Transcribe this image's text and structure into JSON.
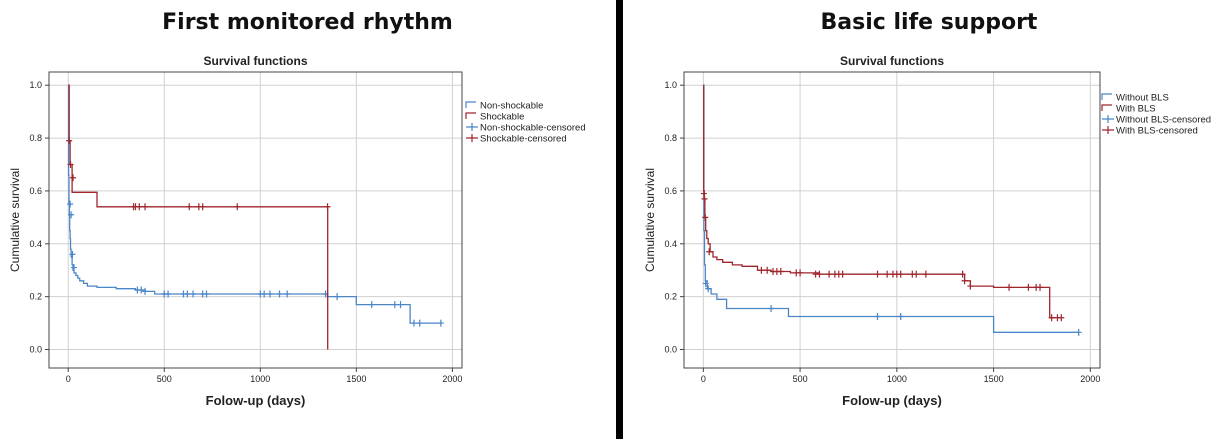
{
  "colors": {
    "series_a": "#4a86c8",
    "series_b": "#a0262d",
    "frame": "#000000",
    "grid": "#d0d0d0"
  },
  "chart_data": [
    {
      "panel_title": "First monitored rhythm",
      "type": "line",
      "step": true,
      "title": "Survival functions",
      "xlabel": "Folow-up (days)",
      "ylabel": "Cumulative survival",
      "xlim": [
        -100,
        2050
      ],
      "ylim": [
        -0.07,
        1.05
      ],
      "x_ticks": [
        0,
        500,
        1000,
        1500,
        2000
      ],
      "y_ticks": [
        "0.0",
        "0.2",
        "0.4",
        "0.6",
        "0.8",
        "1.0"
      ],
      "grid": true,
      "legend_position": "right",
      "legend": [
        "Non-shockable",
        "Shockable",
        "Non-shockable-censored",
        "Shockable-censored"
      ],
      "series": [
        {
          "name": "Non-shockable",
          "color": "#4a86c8",
          "x": [
            0,
            2,
            4,
            6,
            8,
            10,
            12,
            15,
            20,
            25,
            30,
            40,
            50,
            60,
            80,
            100,
            150,
            250,
            350,
            400,
            450,
            1000,
            1350,
            1500,
            1650,
            1780,
            1940
          ],
          "y": [
            1.0,
            0.66,
            0.55,
            0.51,
            0.45,
            0.42,
            0.38,
            0.35,
            0.32,
            0.3,
            0.29,
            0.28,
            0.27,
            0.26,
            0.25,
            0.24,
            0.235,
            0.23,
            0.225,
            0.22,
            0.21,
            0.21,
            0.2,
            0.17,
            0.17,
            0.1,
            0.1
          ],
          "censored_x": [
            10,
            15,
            22,
            30,
            360,
            380,
            400,
            500,
            520,
            600,
            620,
            650,
            700,
            720,
            1000,
            1020,
            1050,
            1100,
            1140,
            1340,
            1400,
            1580,
            1700,
            1730,
            1800,
            1830,
            1940
          ],
          "censored_y": [
            0.55,
            0.51,
            0.36,
            0.31,
            0.225,
            0.225,
            0.22,
            0.21,
            0.21,
            0.21,
            0.21,
            0.21,
            0.21,
            0.21,
            0.21,
            0.21,
            0.21,
            0.21,
            0.21,
            0.21,
            0.2,
            0.17,
            0.17,
            0.17,
            0.1,
            0.1,
            0.1
          ]
        },
        {
          "name": "Shockable",
          "color": "#a0262d",
          "x": [
            0,
            5,
            10,
            20,
            150,
            1350,
            1351
          ],
          "y": [
            1.0,
            0.79,
            0.7,
            0.595,
            0.54,
            0.54,
            0.0
          ],
          "censored_x": [
            5,
            12,
            25,
            340,
            350,
            370,
            400,
            630,
            680,
            700,
            880,
            1350
          ],
          "censored_y": [
            0.79,
            0.7,
            0.65,
            0.54,
            0.54,
            0.54,
            0.54,
            0.54,
            0.54,
            0.54,
            0.54,
            0.54
          ]
        }
      ]
    },
    {
      "panel_title": "Basic life support",
      "type": "line",
      "step": true,
      "title": "Survival functions",
      "xlabel": "Folow-up (days)",
      "ylabel": "Cumulative survival",
      "xlim": [
        -100,
        2050
      ],
      "ylim": [
        -0.07,
        1.05
      ],
      "x_ticks": [
        0,
        500,
        1000,
        1500,
        2000
      ],
      "y_ticks": [
        "0.0",
        "0.2",
        "0.4",
        "0.6",
        "0.8",
        "1.0"
      ],
      "grid": true,
      "legend_position": "right",
      "legend": [
        "Without BLS",
        "With BLS",
        "Without BLS-censored",
        "With BLS-censored"
      ],
      "series": [
        {
          "name": "Without BLS",
          "color": "#4a86c8",
          "x": [
            0,
            3,
            6,
            10,
            20,
            40,
            70,
            120,
            440,
            1500,
            1940
          ],
          "y": [
            1.0,
            0.45,
            0.32,
            0.26,
            0.23,
            0.21,
            0.19,
            0.155,
            0.125,
            0.065,
            0.065
          ],
          "censored_x": [
            12,
            25,
            350,
            900,
            1020,
            1940
          ],
          "censored_y": [
            0.25,
            0.23,
            0.155,
            0.125,
            0.125,
            0.065
          ]
        },
        {
          "name": "With BLS",
          "color": "#a0262d",
          "x": [
            0,
            2,
            5,
            8,
            12,
            18,
            25,
            35,
            50,
            70,
            100,
            150,
            200,
            280,
            350,
            450,
            600,
            1340,
            1350,
            1380,
            1500,
            1790,
            1820
          ],
          "y": [
            1.0,
            0.6,
            0.57,
            0.5,
            0.45,
            0.42,
            0.4,
            0.37,
            0.35,
            0.34,
            0.33,
            0.32,
            0.315,
            0.3,
            0.295,
            0.29,
            0.285,
            0.285,
            0.26,
            0.24,
            0.235,
            0.12,
            0.12
          ],
          "censored_x": [
            3,
            6,
            10,
            30,
            300,
            330,
            360,
            380,
            400,
            480,
            500,
            580,
            600,
            650,
            680,
            700,
            720,
            900,
            950,
            980,
            1000,
            1020,
            1080,
            1100,
            1150,
            1340,
            1350,
            1380,
            1580,
            1680,
            1720,
            1740,
            1800,
            1830,
            1850
          ],
          "censored_y": [
            0.59,
            0.57,
            0.5,
            0.37,
            0.3,
            0.3,
            0.295,
            0.295,
            0.295,
            0.29,
            0.29,
            0.285,
            0.285,
            0.285,
            0.285,
            0.285,
            0.285,
            0.285,
            0.285,
            0.285,
            0.285,
            0.285,
            0.285,
            0.285,
            0.285,
            0.285,
            0.26,
            0.24,
            0.235,
            0.235,
            0.235,
            0.235,
            0.12,
            0.12,
            0.12
          ]
        }
      ]
    }
  ]
}
